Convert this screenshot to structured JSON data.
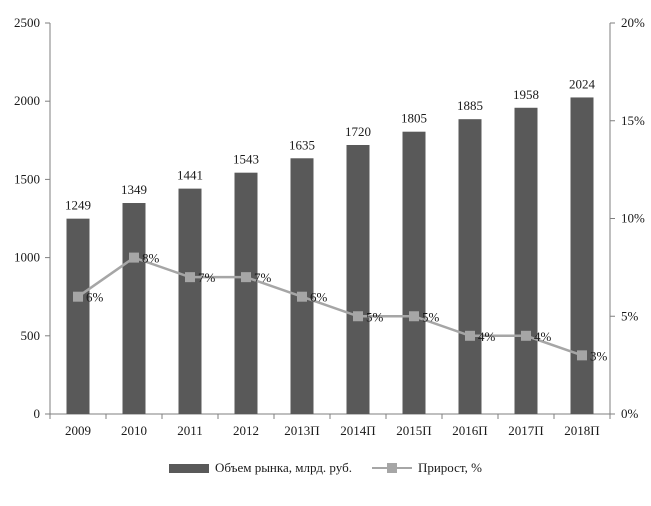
{
  "chart_data": {
    "type": "bar",
    "categories": [
      "2009",
      "2010",
      "2011",
      "2012",
      "2013П",
      "2014П",
      "2015П",
      "2016П",
      "2017П",
      "2018П"
    ],
    "series": [
      {
        "name": "Объем рынка, млрд. руб.",
        "type": "bar",
        "axis": "left",
        "values": [
          1249,
          1349,
          1441,
          1543,
          1635,
          1720,
          1805,
          1885,
          1958,
          2024
        ],
        "labels": [
          "1249",
          "1349",
          "1441",
          "1543",
          "1635",
          "1720",
          "1805",
          "1885",
          "1958",
          "2024"
        ]
      },
      {
        "name": "Прирост, %",
        "type": "line",
        "axis": "right",
        "values": [
          6,
          8,
          7,
          7,
          6,
          5,
          5,
          4,
          4,
          3
        ],
        "labels": [
          "6%",
          "8%",
          "7%",
          "7%",
          "6%",
          "5%",
          "5%",
          "4%",
          "4%",
          "3%"
        ]
      }
    ],
    "y_left": {
      "min": 0,
      "max": 2500,
      "ticks": [
        "0",
        "500",
        "1000",
        "1500",
        "2000",
        "2500"
      ]
    },
    "y_right": {
      "min": 0,
      "max": 20,
      "ticks": [
        "0%",
        "5%",
        "10%",
        "15%",
        "20%"
      ]
    },
    "title": "",
    "xlabel": "",
    "ylabel": "",
    "grid": false,
    "legend_position": "bottom",
    "colors": {
      "bar": "#595959",
      "line": "#a6a6a6",
      "axis": "#7f7f7f"
    }
  }
}
